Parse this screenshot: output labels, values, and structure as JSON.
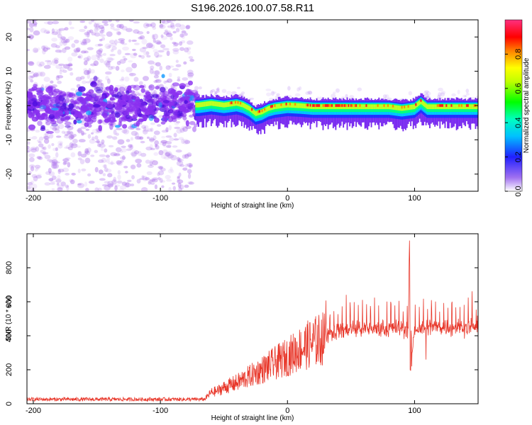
{
  "chart_data": [
    {
      "type": "heatmap",
      "title": "S196.2026.100.07.58.R11",
      "xlabel": "Height of straight line (km)",
      "ylabel": "Frequency (Hz)",
      "xlim": [
        -205,
        150
      ],
      "ylim": [
        -25,
        25
      ],
      "xticks": [
        -200,
        -100,
        0,
        100
      ],
      "yticks": [
        -20,
        -10,
        0,
        10,
        20
      ],
      "colorbar": {
        "label": "Normalized spectral amplitude",
        "ticks": [
          "0.0",
          "0.2",
          "0.4",
          "0.6",
          "0.8"
        ],
        "range": [
          0,
          1
        ]
      },
      "ridge": [
        {
          "x": -70,
          "freq": 0.5
        },
        {
          "x": -60,
          "freq": 1.0
        },
        {
          "x": -50,
          "freq": 0.5
        },
        {
          "x": -40,
          "freq": 1.0
        },
        {
          "x": -35,
          "freq": 0.5
        },
        {
          "x": -30,
          "freq": -0.5
        },
        {
          "x": -25,
          "freq": -2.0
        },
        {
          "x": -20,
          "freq": -1.5
        },
        {
          "x": -15,
          "freq": -0.5
        },
        {
          "x": -10,
          "freq": 0.0
        },
        {
          "x": 0,
          "freq": 0.5
        },
        {
          "x": 10,
          "freq": 0.3
        },
        {
          "x": 20,
          "freq": 0.0
        },
        {
          "x": 40,
          "freq": 0.0
        },
        {
          "x": 60,
          "freq": 0.0
        },
        {
          "x": 80,
          "freq": 0.0
        },
        {
          "x": 90,
          "freq": -0.5
        },
        {
          "x": 100,
          "freq": 0.0
        },
        {
          "x": 105,
          "freq": 1.5
        },
        {
          "x": 110,
          "freq": 0.0
        },
        {
          "x": 150,
          "freq": 0.0
        }
      ],
      "noisy_region_x": [
        -205,
        -75
      ]
    },
    {
      "type": "line",
      "xlabel": "Height of straight line (km)",
      "ylabel": "SNR (10 * v/v)",
      "xlim": [
        -205,
        150
      ],
      "ylim": [
        0,
        1000
      ],
      "xticks": [
        -200,
        -100,
        0,
        100
      ],
      "yticks": [
        0,
        200,
        400,
        600,
        800
      ],
      "color": "#e8372a",
      "series": [
        {
          "name": "SNR",
          "x": [
            -205,
            -150,
            -100,
            -75,
            -65,
            -60,
            -55,
            -50,
            -40,
            -30,
            -20,
            -10,
            0,
            10,
            20,
            30,
            40,
            50,
            60,
            70,
            80,
            90,
            95,
            96,
            97,
            100,
            110,
            120,
            130,
            140,
            150
          ],
          "values": [
            25,
            25,
            25,
            25,
            30,
            70,
            80,
            100,
            130,
            170,
            210,
            250,
            290,
            340,
            380,
            410,
            430,
            440,
            440,
            440,
            440,
            445,
            440,
            950,
            200,
            440,
            450,
            450,
            450,
            450,
            450
          ]
        }
      ]
    }
  ]
}
